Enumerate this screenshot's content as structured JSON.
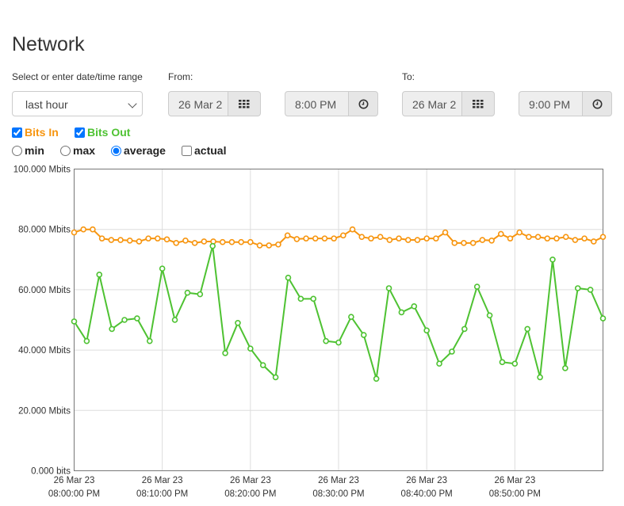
{
  "page": {
    "title": "Network"
  },
  "range": {
    "label": "Select or enter date/time range",
    "selected": "last hour"
  },
  "from": {
    "label": "From:",
    "date": "26 Mar 2",
    "time": "8:00 PM"
  },
  "to": {
    "label": "To:",
    "date": "26 Mar 2",
    "time": "9:00 PM"
  },
  "toggles": {
    "bits_in": "Bits In",
    "bits_out": "Bits Out",
    "min": "min",
    "max": "max",
    "average": "average",
    "actual": "actual"
  },
  "colors": {
    "bits_in": "#f7950f",
    "bits_out": "#4ec232",
    "grid": "#dddddd",
    "axis": "#777777"
  },
  "icons": {
    "calendar": "calendar-icon",
    "clock": "clock-icon"
  },
  "chart_data": {
    "type": "line",
    "ylim": [
      0,
      100
    ],
    "yunit": "Mbits",
    "yticks": [
      "0.000 bits",
      "20.000 Mbits",
      "40.000 Mbits",
      "60.000 Mbits",
      "80.000 Mbits",
      "100.000 Mbits"
    ],
    "xticks": [
      [
        "26 Mar 23",
        "08:00:00 PM"
      ],
      [
        "26 Mar 23",
        "08:10:00 PM"
      ],
      [
        "26 Mar 23",
        "08:20:00 PM"
      ],
      [
        "26 Mar 23",
        "08:30:00 PM"
      ],
      [
        "26 Mar 23",
        "08:40:00 PM"
      ],
      [
        "26 Mar 23",
        "08:50:00 PM"
      ]
    ],
    "grid": true,
    "legend": "top-left",
    "series": [
      {
        "name": "Bits In",
        "values": [
          79,
          80,
          80,
          77,
          76.5,
          76.5,
          76.3,
          76,
          77,
          77,
          76.7,
          75.5,
          76.3,
          75.5,
          76,
          76,
          75.8,
          75.8,
          75.8,
          75.8,
          74.7,
          74.7,
          75,
          78,
          76.8,
          77,
          77,
          77,
          77,
          78,
          80,
          77.5,
          77,
          77.5,
          76.5,
          77,
          76.5,
          76.5,
          77,
          77,
          79,
          75.5,
          75.5,
          75.5,
          76.5,
          76.3,
          78.5,
          77,
          79,
          77.5,
          77.5,
          77,
          77,
          77.5,
          76.5,
          77,
          76,
          77.5
        ]
      },
      {
        "name": "Bits Out",
        "values": [
          49.5,
          43,
          65,
          47,
          50,
          50.5,
          43,
          67,
          50,
          59,
          58.5,
          74.5,
          39,
          49,
          40.5,
          35,
          31,
          64,
          57,
          57,
          43,
          42.5,
          51,
          45,
          30.5,
          60.5,
          52.5,
          54.5,
          46.5,
          35.5,
          39.5,
          47,
          61,
          51.5,
          36,
          35.5,
          47,
          31,
          70,
          34,
          60.5,
          60,
          50.5
        ]
      }
    ]
  }
}
